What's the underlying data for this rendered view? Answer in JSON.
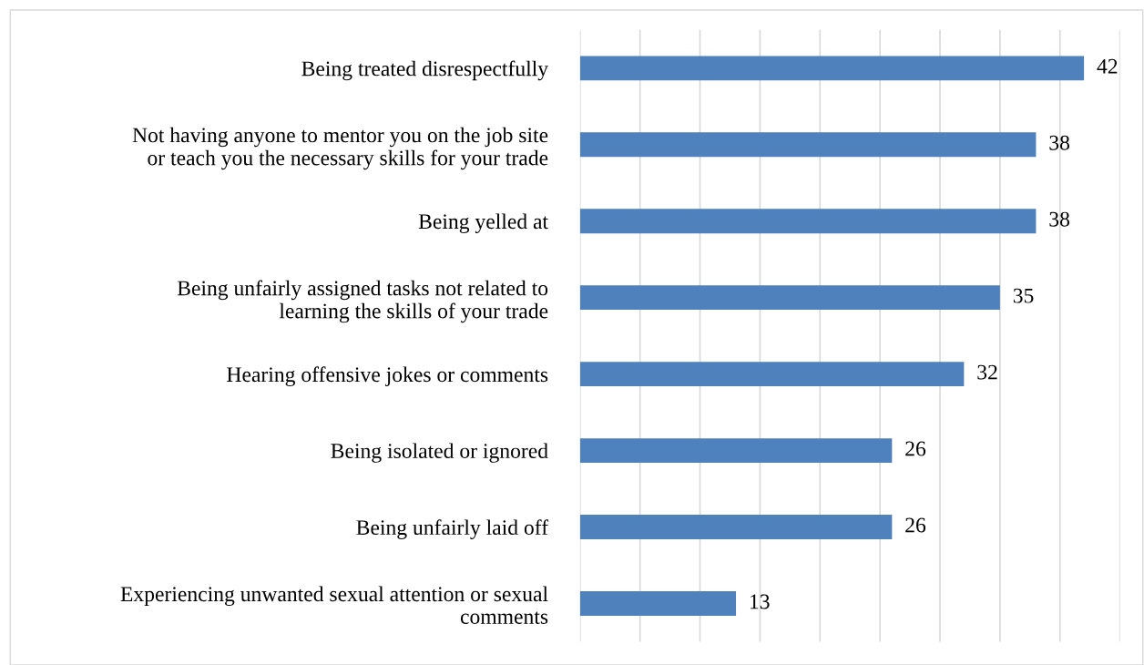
{
  "chart_data": {
    "type": "bar",
    "orientation": "horizontal",
    "categories": [
      "Being treated disrespectfully",
      "Not having anyone to mentor you on the job site\nor teach you the necessary skills for your trade",
      "Being yelled at",
      "Being unfairly assigned tasks not related to\nlearning the skills of your trade",
      "Hearing offensive jokes or comments",
      "Being isolated or ignored",
      "Being unfairly laid off",
      "Experiencing unwanted sexual attention or sexual\ncomments"
    ],
    "values": [
      42,
      38,
      38,
      35,
      32,
      26,
      26,
      13
    ],
    "color": "#4f81bd",
    "data_labels": true,
    "xlim": [
      0,
      45
    ],
    "xticks": [
      {
        "value": 0,
        "label": null
      },
      {
        "value": 5,
        "label": null
      },
      {
        "value": 10,
        "label": null
      },
      {
        "value": 15,
        "label": null
      },
      {
        "value": 20,
        "label": null
      },
      {
        "value": 25,
        "label": null
      },
      {
        "value": 30,
        "label": null
      },
      {
        "value": 35,
        "label": null
      },
      {
        "value": 40,
        "label": null
      },
      {
        "value": 45,
        "label": null
      }
    ],
    "grid": "x",
    "tick_labels": "y",
    "legend": false
  }
}
